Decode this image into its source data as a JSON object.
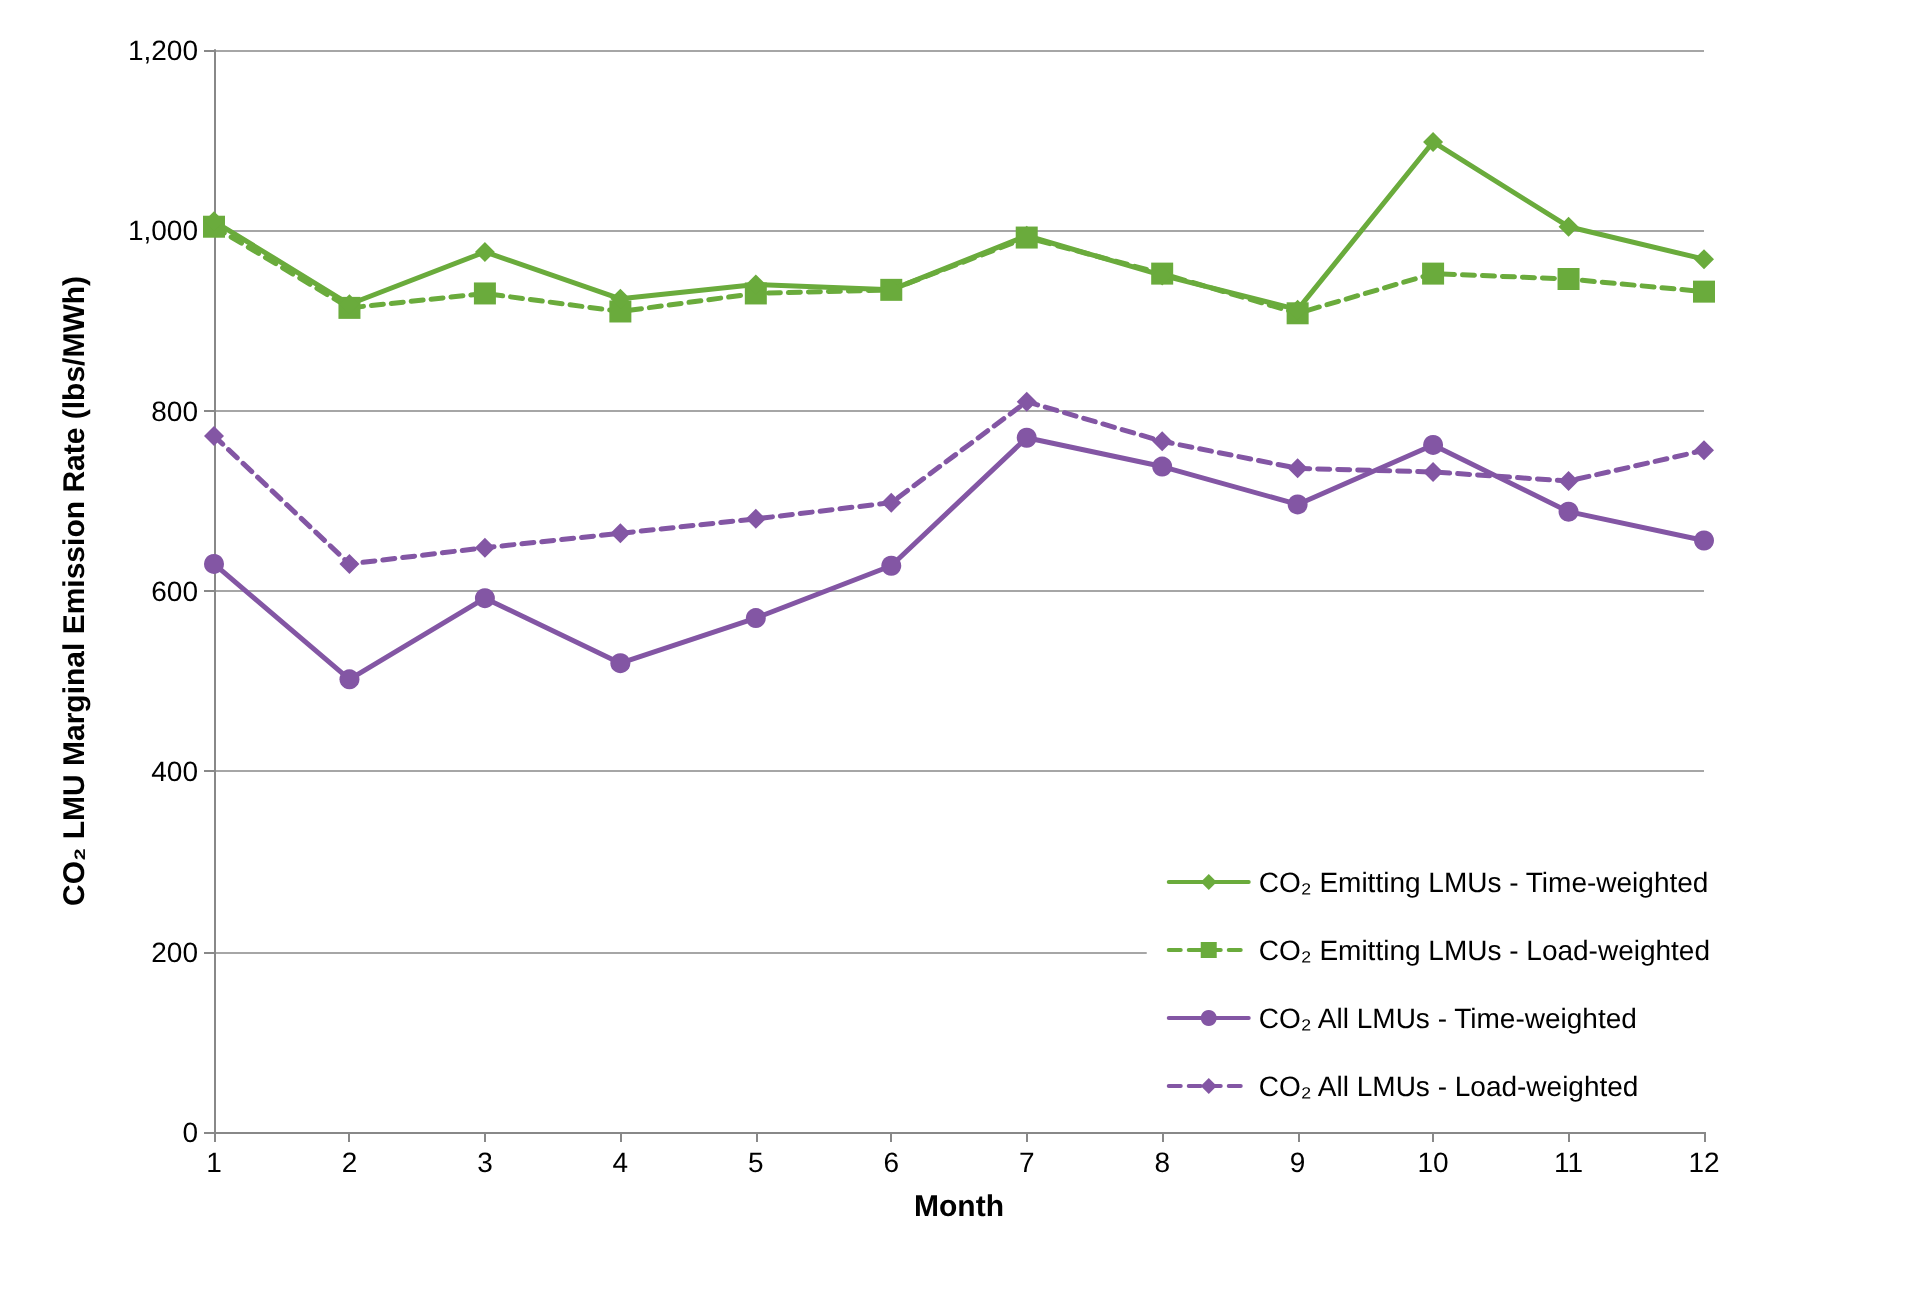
{
  "chart_data": {
    "type": "line",
    "xlabel": "Month",
    "ylabel": "CO₂ LMU Marginal Emission Rate (lbs/MWh)",
    "x": [
      1,
      2,
      3,
      4,
      5,
      6,
      7,
      8,
      9,
      10,
      11,
      12
    ],
    "xlim": [
      1,
      12
    ],
    "xticks": [
      1,
      2,
      3,
      4,
      5,
      6,
      7,
      8,
      9,
      10,
      11,
      12
    ],
    "ylim": [
      0,
      1200
    ],
    "yticks": [
      0,
      200,
      400,
      600,
      800,
      {
        "value": 1000,
        "label": "1,000"
      },
      {
        "value": 1200,
        "label": "1,200"
      }
    ],
    "grid": "y",
    "legend": "bottom right",
    "series": [
      {
        "name": "CO₂ Emitting LMUs - Time-weighted",
        "color": "#6aab3c",
        "marker": "diamond",
        "line_style": "solid",
        "values": [
          1010,
          918,
          976,
          924,
          940,
          934,
          994,
          950,
          912,
          1098,
          1004,
          968
        ]
      },
      {
        "name": "CO₂ Emitting LMUs - Load-weighted",
        "color": "#6aab3c",
        "marker": "square",
        "line_style": "dashed",
        "values": [
          1004,
          914,
          930,
          910,
          930,
          934,
          992,
          952,
          908,
          952,
          946,
          932
        ]
      },
      {
        "name": "CO₂ All LMUs - Time-weighted",
        "color": "#8356a4",
        "marker": "circle",
        "line_style": "solid",
        "values": [
          630,
          502,
          592,
          520,
          570,
          628,
          770,
          738,
          696,
          762,
          688,
          656
        ]
      },
      {
        "name": "CO₂ All LMUs - Load-weighted",
        "color": "#8356a4",
        "marker": "diamond",
        "line_style": "dashed",
        "values": [
          772,
          630,
          648,
          664,
          680,
          698,
          810,
          766,
          736,
          732,
          722,
          756
        ]
      }
    ]
  }
}
